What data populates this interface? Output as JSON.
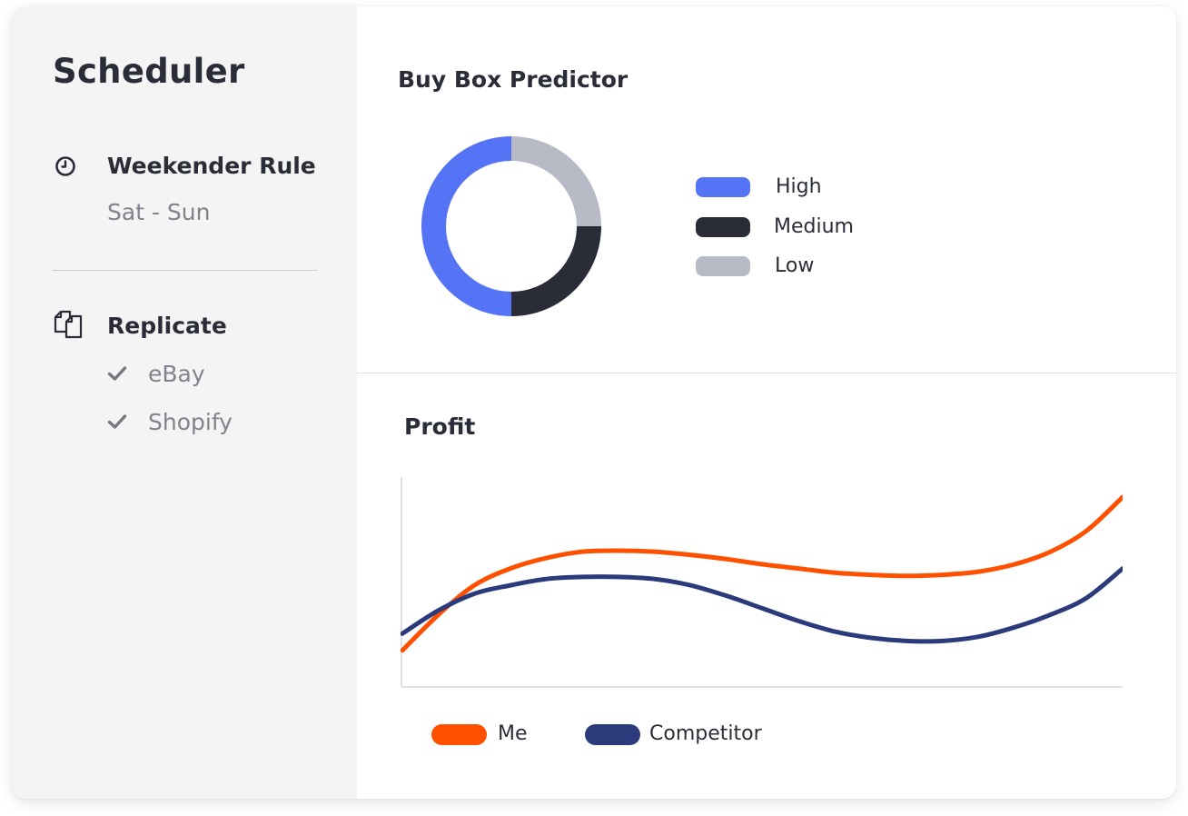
{
  "scheduler": {
    "title": "Scheduler",
    "rule": {
      "icon": "clock-icon",
      "title": "Weekender Rule",
      "subtitle": "Sat - Sun"
    },
    "replicate": {
      "icon": "copy-icon",
      "title": "Replicate",
      "items": [
        {
          "icon": "check-icon",
          "label": "eBay"
        },
        {
          "icon": "check-icon",
          "label": "Shopify"
        }
      ]
    }
  },
  "buy_box": {
    "title": "Buy Box Predictor",
    "legend": [
      {
        "label": "High",
        "color": "#5573f5"
      },
      {
        "label": "Medium",
        "color": "#2a2d38"
      },
      {
        "label": "Low",
        "color": "#b8bbc6"
      }
    ]
  },
  "profit": {
    "title": "Profit",
    "legend": [
      {
        "label": "Me",
        "color": "#ff5000"
      },
      {
        "label": "Competitor",
        "color": "#2b3a7b"
      }
    ]
  },
  "chart_data": [
    {
      "type": "pie",
      "title": "Buy Box Predictor",
      "categories": [
        "High",
        "Medium",
        "Low"
      ],
      "values": [
        50,
        25,
        25
      ],
      "colors": [
        "#5573f5",
        "#2a2d38",
        "#b8bbc6"
      ],
      "legend": "right"
    },
    {
      "type": "line",
      "title": "Profit",
      "x": [
        0,
        0.05,
        0.1,
        0.15,
        0.2,
        0.25,
        0.3,
        0.35,
        0.4,
        0.45,
        0.5,
        0.55,
        0.6,
        0.65,
        0.7,
        0.75,
        0.8,
        0.85,
        0.9,
        0.95,
        1.0
      ],
      "series": [
        {
          "name": "Me",
          "color": "#ff5000",
          "values": [
            0.17,
            0.34,
            0.48,
            0.56,
            0.61,
            0.64,
            0.645,
            0.64,
            0.625,
            0.605,
            0.58,
            0.56,
            0.54,
            0.53,
            0.525,
            0.53,
            0.545,
            0.58,
            0.64,
            0.74,
            0.9
          ]
        },
        {
          "name": "Competitor",
          "color": "#2b3a7b",
          "values": [
            0.25,
            0.36,
            0.44,
            0.48,
            0.51,
            0.52,
            0.52,
            0.51,
            0.48,
            0.43,
            0.37,
            0.31,
            0.26,
            0.23,
            0.215,
            0.215,
            0.235,
            0.28,
            0.34,
            0.42,
            0.56
          ]
        }
      ],
      "ylim": [
        0,
        1
      ],
      "grid": false,
      "legend": "bottom-left"
    }
  ]
}
